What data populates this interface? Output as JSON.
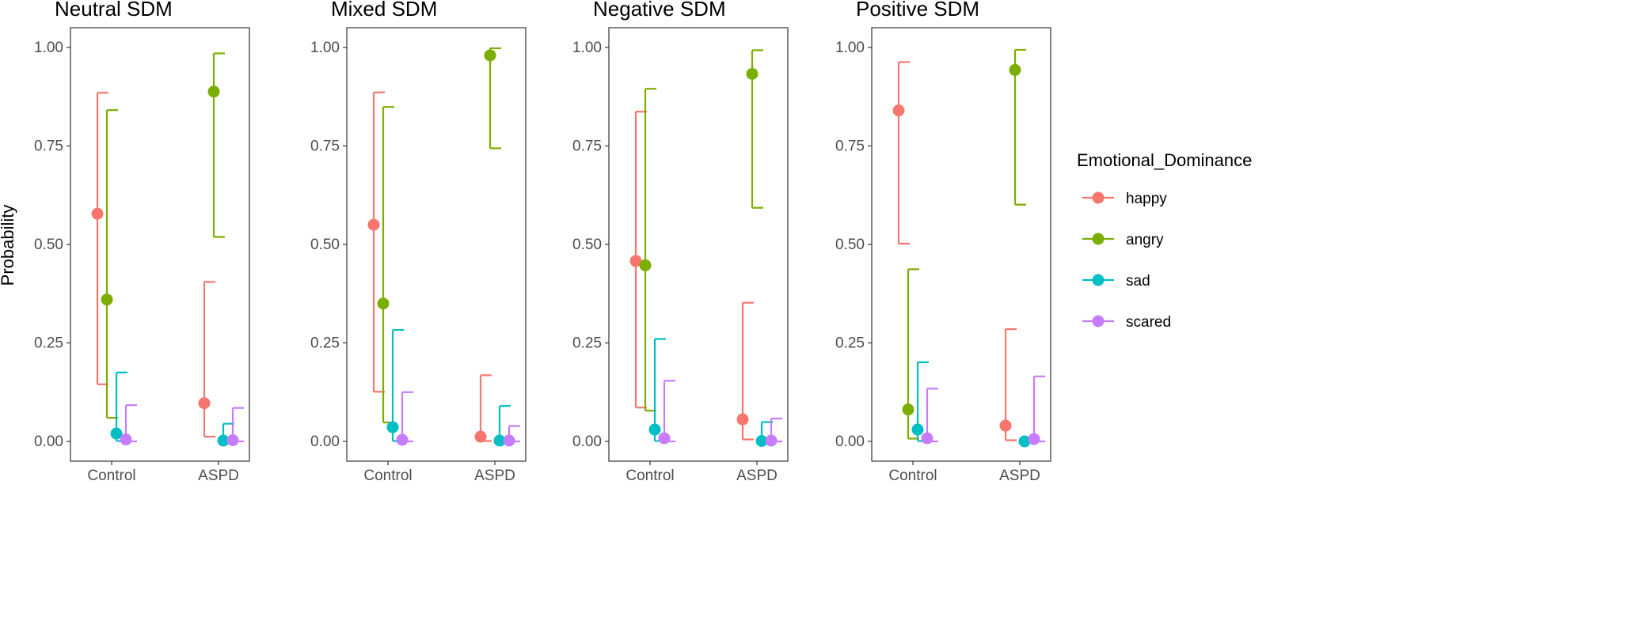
{
  "chart_data": {
    "type": "scatter",
    "ylabel": "Probability",
    "ylim": [
      0,
      1
    ],
    "y_ticks": [
      "0.00",
      "0.25",
      "0.50",
      "0.75",
      "1.00"
    ],
    "y_tick_values": [
      0,
      0.25,
      0.5,
      0.75,
      1.0
    ],
    "categories": [
      "Control",
      "ASPD"
    ],
    "grid": false,
    "legend_position": "right",
    "legend": {
      "title": "Emotional_Dominance",
      "items": [
        {
          "label": "happy",
          "color": "#F8766D"
        },
        {
          "label": "angry",
          "color": "#7CAE00"
        },
        {
          "label": "sad",
          "color": "#00BFC4"
        },
        {
          "label": "scared",
          "color": "#C77CFF"
        }
      ]
    },
    "panels": [
      {
        "title": "Neutral SDM",
        "series": [
          {
            "name": "happy",
            "points": [
              {
                "x": "Control",
                "y": 0.578,
                "lo": 0.145,
                "hi": 0.885
              },
              {
                "x": "ASPD",
                "y": 0.097,
                "lo": 0.012,
                "hi": 0.405
              }
            ]
          },
          {
            "name": "angry",
            "points": [
              {
                "x": "Control",
                "y": 0.36,
                "lo": 0.06,
                "hi": 0.841
              },
              {
                "x": "ASPD",
                "y": 0.888,
                "lo": 0.519,
                "hi": 0.985
              }
            ]
          },
          {
            "name": "sad",
            "points": [
              {
                "x": "Control",
                "y": 0.02,
                "lo": 0.001,
                "hi": 0.175
              },
              {
                "x": "ASPD",
                "y": 0.002,
                "lo": 0.0,
                "hi": 0.045
              }
            ]
          },
          {
            "name": "scared",
            "points": [
              {
                "x": "Control",
                "y": 0.005,
                "lo": 0.0,
                "hi": 0.092
              },
              {
                "x": "ASPD",
                "y": 0.003,
                "lo": 0.0,
                "hi": 0.085
              }
            ]
          }
        ]
      },
      {
        "title": "Mixed SDM",
        "series": [
          {
            "name": "happy",
            "points": [
              {
                "x": "Control",
                "y": 0.55,
                "lo": 0.126,
                "hi": 0.886
              },
              {
                "x": "ASPD",
                "y": 0.012,
                "lo": 0.001,
                "hi": 0.168
              }
            ]
          },
          {
            "name": "angry",
            "points": [
              {
                "x": "Control",
                "y": 0.35,
                "lo": 0.048,
                "hi": 0.849
              },
              {
                "x": "ASPD",
                "y": 0.98,
                "lo": 0.744,
                "hi": 0.998
              }
            ]
          },
          {
            "name": "sad",
            "points": [
              {
                "x": "Control",
                "y": 0.036,
                "lo": 0.001,
                "hi": 0.283
              },
              {
                "x": "ASPD",
                "y": 0.002,
                "lo": 0.0,
                "hi": 0.09
              }
            ]
          },
          {
            "name": "scared",
            "points": [
              {
                "x": "Control",
                "y": 0.004,
                "lo": 0.0,
                "hi": 0.125
              },
              {
                "x": "ASPD",
                "y": 0.002,
                "lo": 0.0,
                "hi": 0.039
              }
            ]
          }
        ]
      },
      {
        "title": "Negative SDM",
        "series": [
          {
            "name": "happy",
            "points": [
              {
                "x": "Control",
                "y": 0.458,
                "lo": 0.086,
                "hi": 0.837
              },
              {
                "x": "ASPD",
                "y": 0.056,
                "lo": 0.005,
                "hi": 0.352
              }
            ]
          },
          {
            "name": "angry",
            "points": [
              {
                "x": "Control",
                "y": 0.447,
                "lo": 0.078,
                "hi": 0.895
              },
              {
                "x": "ASPD",
                "y": 0.933,
                "lo": 0.593,
                "hi": 0.993
              }
            ]
          },
          {
            "name": "sad",
            "points": [
              {
                "x": "Control",
                "y": 0.03,
                "lo": 0.001,
                "hi": 0.26
              },
              {
                "x": "ASPD",
                "y": 0.001,
                "lo": 0.0,
                "hi": 0.049
              }
            ]
          },
          {
            "name": "scared",
            "points": [
              {
                "x": "Control",
                "y": 0.008,
                "lo": 0.0,
                "hi": 0.154
              },
              {
                "x": "ASPD",
                "y": 0.002,
                "lo": 0.0,
                "hi": 0.058
              }
            ]
          }
        ]
      },
      {
        "title": "Positive SDM",
        "series": [
          {
            "name": "happy",
            "points": [
              {
                "x": "Control",
                "y": 0.84,
                "lo": 0.502,
                "hi": 0.963
              },
              {
                "x": "ASPD",
                "y": 0.04,
                "lo": 0.003,
                "hi": 0.285
              }
            ]
          },
          {
            "name": "angry",
            "points": [
              {
                "x": "Control",
                "y": 0.081,
                "lo": 0.007,
                "hi": 0.437
              },
              {
                "x": "ASPD",
                "y": 0.943,
                "lo": 0.601,
                "hi": 0.994
              }
            ]
          },
          {
            "name": "sad",
            "points": [
              {
                "x": "Control",
                "y": 0.03,
                "lo": 0.001,
                "hi": 0.201
              },
              {
                "x": "ASPD",
                "y": 0.0,
                "lo": 0.0,
                "hi": 0.008
              }
            ]
          },
          {
            "name": "scared",
            "points": [
              {
                "x": "Control",
                "y": 0.008,
                "lo": 0.0,
                "hi": 0.134
              },
              {
                "x": "ASPD",
                "y": 0.006,
                "lo": 0.0,
                "hi": 0.165
              }
            ]
          }
        ]
      }
    ]
  }
}
